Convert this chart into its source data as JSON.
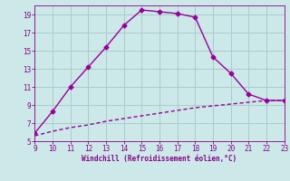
{
  "title": "",
  "xlabel": "Windchill (Refroidissement éolien,°C)",
  "xlim": [
    9,
    23
  ],
  "ylim": [
    5,
    20
  ],
  "xticks": [
    9,
    10,
    11,
    12,
    13,
    14,
    15,
    16,
    17,
    18,
    19,
    20,
    21,
    22,
    23
  ],
  "yticks": [
    5,
    7,
    9,
    11,
    13,
    15,
    17,
    19
  ],
  "line1_x": [
    9,
    10,
    11,
    12,
    13,
    14,
    15,
    16,
    17,
    18,
    19,
    20,
    21,
    22,
    23
  ],
  "line1_y": [
    5.9,
    8.3,
    11.0,
    13.2,
    15.4,
    17.8,
    19.5,
    19.3,
    19.1,
    18.7,
    14.3,
    12.5,
    10.2,
    9.5,
    9.5
  ],
  "line2_x": [
    9,
    10,
    11,
    12,
    13,
    14,
    15,
    16,
    17,
    18,
    19,
    20,
    21,
    22,
    23
  ],
  "line2_y": [
    5.6,
    6.1,
    6.5,
    6.8,
    7.2,
    7.5,
    7.8,
    8.1,
    8.4,
    8.7,
    8.9,
    9.1,
    9.3,
    9.5,
    9.5
  ],
  "line_color": "#990099",
  "bg_color": "#cce8e8",
  "grid_color": "#aacccc",
  "tick_color": "#880088",
  "label_color": "#880088",
  "marker": "D",
  "markersize": 2.5,
  "linewidth": 1.0,
  "xlabel_fontsize": 5.5,
  "tick_fontsize": 5.5
}
